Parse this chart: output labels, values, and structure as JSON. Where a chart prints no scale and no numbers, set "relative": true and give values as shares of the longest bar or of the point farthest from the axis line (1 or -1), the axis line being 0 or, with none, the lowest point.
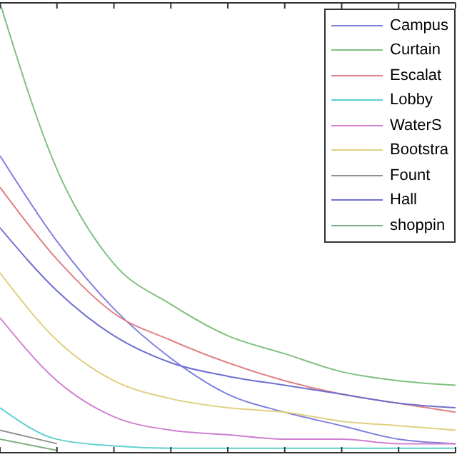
{
  "chart_data": {
    "type": "line",
    "relative": true,
    "categories": [
      null,
      null,
      null,
      null,
      null,
      null,
      null,
      null,
      null
    ],
    "legend": "top right",
    "marker": "none",
    "line_style": "solid",
    "series": [
      {
        "name": "Campus",
        "color": "#8080e0",
        "values": [
          0.66,
          0.47,
          0.32,
          0.21,
          0.13,
          0.09,
          0.06,
          0.03,
          0.02
        ]
      },
      {
        "name": "Curtain",
        "color": "#80c080",
        "values": [
          1,
          0.63,
          0.42,
          0.33,
          0.26,
          0.22,
          0.18,
          0.16,
          0.15
        ]
      },
      {
        "name": "Escalat",
        "color": "#e08080",
        "values": [
          0.59,
          0.43,
          0.31,
          0.25,
          0.2,
          0.16,
          0.13,
          0.11,
          0.09
        ]
      },
      {
        "name": "Lobby",
        "color": "#60d0d0",
        "values": [
          0.1,
          0.03,
          0.015,
          0.01,
          0.01,
          0.01,
          0.01,
          0.01,
          0.01
        ]
      },
      {
        "name": "WaterS",
        "color": "#d080d0",
        "values": [
          0.3,
          0.16,
          0.08,
          0.05,
          0.04,
          0.03,
          0.03,
          0.02,
          0.02
        ]
      },
      {
        "name": "Bootstra",
        "color": "#e0d080",
        "values": [
          0.4,
          0.25,
          0.16,
          0.12,
          0.1,
          0.09,
          0.07,
          0.06,
          0.05
        ]
      },
      {
        "name": "Fount",
        "color": "#909090",
        "values": [
          0.05,
          0.02,
          null,
          null,
          null,
          null,
          null,
          null,
          null
        ]
      },
      {
        "name": "Hall",
        "color": "#7070d0",
        "values": [
          0.5,
          0.36,
          0.26,
          0.2,
          0.17,
          0.15,
          0.13,
          0.11,
          0.1
        ]
      },
      {
        "name": "shoppin",
        "color": "#80b080",
        "values": [
          0.03,
          0.005,
          null,
          null,
          null,
          null,
          null,
          null,
          null
        ]
      }
    ]
  }
}
